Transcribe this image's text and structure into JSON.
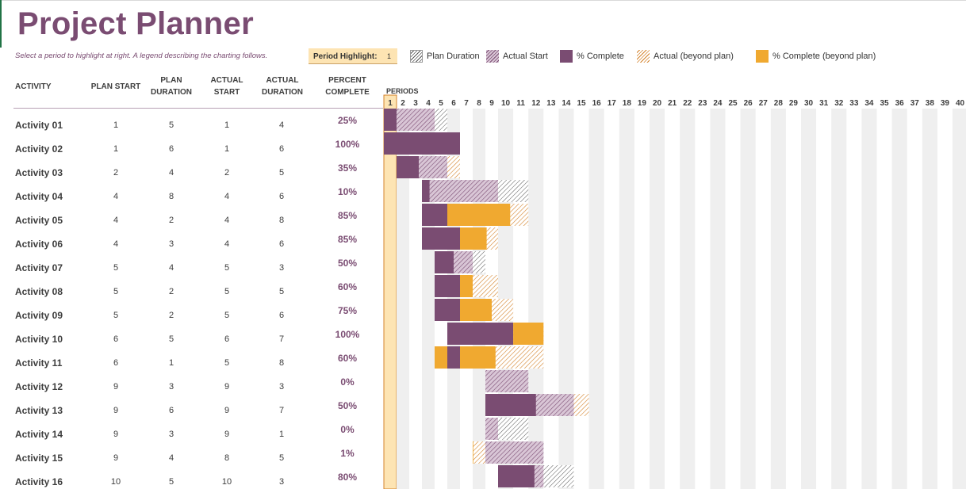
{
  "title": "Project Planner",
  "subtitle": "Select a period to highlight at right.  A legend describing the charting follows.",
  "period_highlight": {
    "label": "Period Highlight:",
    "value": "1"
  },
  "legend": [
    {
      "key": "plan",
      "label": "Plan Duration"
    },
    {
      "key": "actual",
      "label": "Actual Start"
    },
    {
      "key": "complete",
      "label": "% Complete"
    },
    {
      "key": "beyond",
      "label": "Actual (beyond plan)"
    },
    {
      "key": "complete_beyond",
      "label": "% Complete (beyond plan)"
    }
  ],
  "headers": {
    "activity": "ACTIVITY",
    "plan_start": "PLAN START",
    "plan_duration": "PLAN DURATION",
    "actual_start": "ACTUAL START",
    "actual_duration": "ACTUAL DURATION",
    "percent_complete": "PERCENT COMPLETE",
    "periods": "PERIODS"
  },
  "period_count": 40,
  "highlight_period": 1,
  "colors": {
    "purple": "#7a4c72",
    "orange": "#f0a930",
    "stripe": "#efefef",
    "highlight": "#fde4b3",
    "highlight_border": "#d4832c"
  },
  "activities": [
    {
      "name": "Activity 01",
      "plan_start": 1,
      "plan_duration": 5,
      "actual_start": 1,
      "actual_duration": 4,
      "percent": "25%"
    },
    {
      "name": "Activity 02",
      "plan_start": 1,
      "plan_duration": 6,
      "actual_start": 1,
      "actual_duration": 6,
      "percent": "100%"
    },
    {
      "name": "Activity 03",
      "plan_start": 2,
      "plan_duration": 4,
      "actual_start": 2,
      "actual_duration": 5,
      "percent": "35%"
    },
    {
      "name": "Activity 04",
      "plan_start": 4,
      "plan_duration": 8,
      "actual_start": 4,
      "actual_duration": 6,
      "percent": "10%"
    },
    {
      "name": "Activity 05",
      "plan_start": 4,
      "plan_duration": 2,
      "actual_start": 4,
      "actual_duration": 8,
      "percent": "85%"
    },
    {
      "name": "Activity 06",
      "plan_start": 4,
      "plan_duration": 3,
      "actual_start": 4,
      "actual_duration": 6,
      "percent": "85%"
    },
    {
      "name": "Activity 07",
      "plan_start": 5,
      "plan_duration": 4,
      "actual_start": 5,
      "actual_duration": 3,
      "percent": "50%"
    },
    {
      "name": "Activity 08",
      "plan_start": 5,
      "plan_duration": 2,
      "actual_start": 5,
      "actual_duration": 5,
      "percent": "60%"
    },
    {
      "name": "Activity 09",
      "plan_start": 5,
      "plan_duration": 2,
      "actual_start": 5,
      "actual_duration": 6,
      "percent": "75%"
    },
    {
      "name": "Activity 10",
      "plan_start": 6,
      "plan_duration": 5,
      "actual_start": 6,
      "actual_duration": 7,
      "percent": "100%"
    },
    {
      "name": "Activity 11",
      "plan_start": 6,
      "plan_duration": 1,
      "actual_start": 5,
      "actual_duration": 8,
      "percent": "60%"
    },
    {
      "name": "Activity 12",
      "plan_start": 9,
      "plan_duration": 3,
      "actual_start": 9,
      "actual_duration": 3,
      "percent": "0%"
    },
    {
      "name": "Activity 13",
      "plan_start": 9,
      "plan_duration": 6,
      "actual_start": 9,
      "actual_duration": 7,
      "percent": "50%"
    },
    {
      "name": "Activity 14",
      "plan_start": 9,
      "plan_duration": 3,
      "actual_start": 9,
      "actual_duration": 1,
      "percent": "0%"
    },
    {
      "name": "Activity 15",
      "plan_start": 9,
      "plan_duration": 4,
      "actual_start": 8,
      "actual_duration": 5,
      "percent": "1%"
    },
    {
      "name": "Activity 16",
      "plan_start": 10,
      "plan_duration": 5,
      "actual_start": 10,
      "actual_duration": 3,
      "percent": "80%"
    }
  ]
}
